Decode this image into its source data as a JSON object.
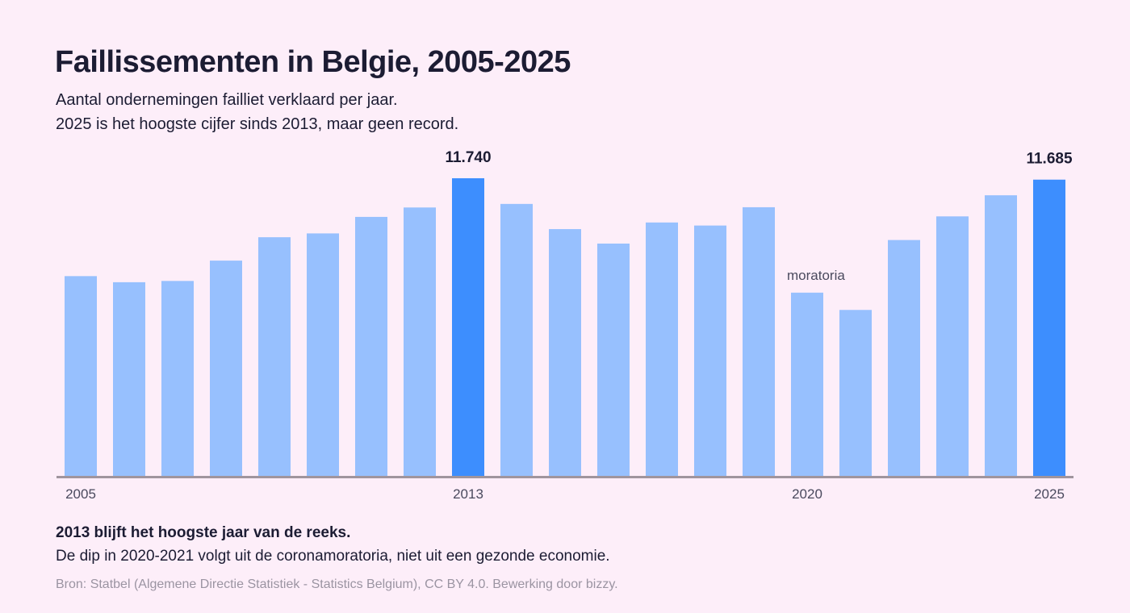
{
  "header": {
    "title": "Faillissementen in Belgie, 2005-2025",
    "subtitle_line1": "Aantal ondernemingen failliet verklaard per jaar.",
    "subtitle_line2": "2025 is het hoogste cijfer sinds 2013, maar geen record."
  },
  "footer": {
    "note_bold": "2013 blijft het hoogste jaar van de reeks.",
    "note": "De dip in 2020-2021 volgt uit de coronamoratoria, niet uit een gezonde economie.",
    "source": "Bron: Statbel (Algemene Directie Statistiek - Statistics Belgium), CC BY 4.0. Bewerking door bizzy."
  },
  "colors": {
    "background": "#FDEEF9",
    "bar": "#97C0FE",
    "bar_highlight": "#3D8EFE",
    "axis": "#A0959E",
    "text": "#1C1C33",
    "muted_text": "#4A4A5E",
    "source_text": "#9B94A2"
  },
  "chart_data": {
    "type": "bar",
    "title": "Faillissementen in Belgie, 2005-2025",
    "xlabel": "",
    "ylabel": "",
    "ylim": [
      0,
      11740
    ],
    "grid": false,
    "categories": [
      "2005",
      "2006",
      "2007",
      "2008",
      "2009",
      "2010",
      "2011",
      "2012",
      "2013",
      "2014",
      "2015",
      "2016",
      "2017",
      "2018",
      "2019",
      "2020",
      "2021",
      "2022",
      "2023",
      "2024",
      "2025"
    ],
    "values": [
      7890,
      7650,
      7700,
      8500,
      9420,
      9570,
      10220,
      10590,
      11740,
      10730,
      9740,
      9170,
      10000,
      9880,
      10600,
      7240,
      6560,
      9310,
      10240,
      11070,
      11685
    ],
    "highlighted": [
      "2013",
      "2025"
    ],
    "tick_labels": [
      "2005",
      "2013",
      "2020",
      "2025"
    ],
    "value_labels": [
      {
        "category": "2013",
        "text": "11.740"
      },
      {
        "category": "2025",
        "text": "11.685"
      }
    ],
    "annotations": [
      {
        "category": "2020",
        "text": "moratoria"
      }
    ]
  }
}
